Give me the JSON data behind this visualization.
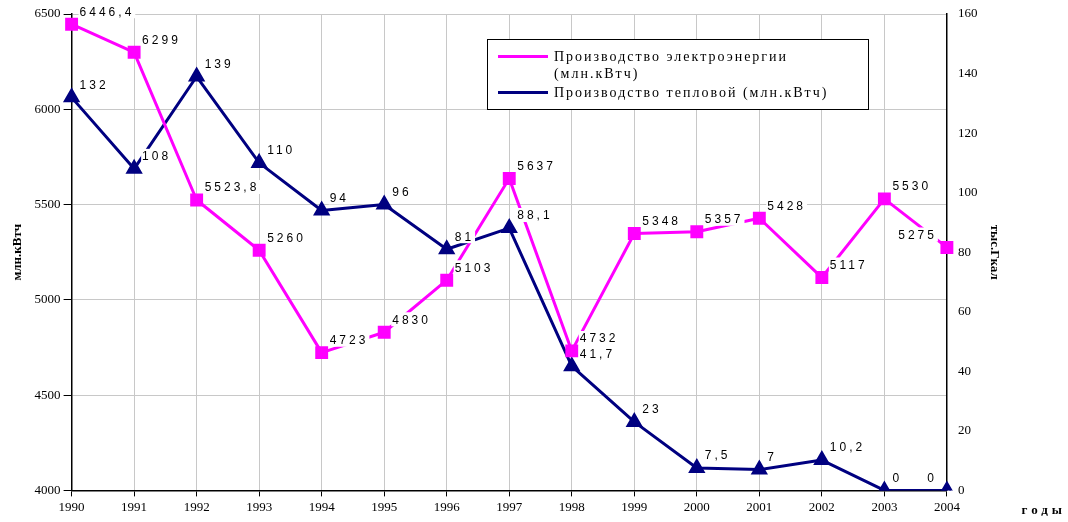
{
  "chart_data": {
    "type": "line",
    "xlabel": "годы",
    "ylabel": "млн.кВтч",
    "y2label": "тыс.Гкал",
    "categories": [
      "1990",
      "1991",
      "1992",
      "1993",
      "1994",
      "1995",
      "1996",
      "1997",
      "1998",
      "1999",
      "2000",
      "2001",
      "2002",
      "2003",
      "2004"
    ],
    "series": [
      {
        "name": "Производство электроэнергии (млн.кВтч)",
        "color": "#ff00ff",
        "marker": "square",
        "values": [
          6446.4,
          6299,
          5523.8,
          5260,
          4723,
          4830,
          5103,
          5637,
          4732,
          5348,
          5357,
          5428,
          5117,
          5530,
          5275
        ],
        "value_labels": [
          "6446,4",
          "6299",
          "5523,8",
          "5260",
          "4723",
          "4830",
          "5103",
          "5637",
          "4732",
          "5348",
          "5357",
          "5428",
          "5117",
          "5530",
          "5275"
        ]
      },
      {
        "name": "Производство тепловой (млн.кВтч)",
        "color": "#000080",
        "marker": "triangle",
        "axis": "y2",
        "values": [
          132,
          108,
          139,
          110,
          94,
          96,
          81,
          88.1,
          41.7,
          23,
          7.5,
          7,
          10.2,
          0,
          0
        ],
        "value_labels": [
          "132",
          "108",
          "139",
          "110",
          "94",
          "96",
          "81",
          "88,1",
          "41,7",
          "23",
          "7,5",
          "7",
          "10,2",
          "0",
          "0"
        ]
      }
    ],
    "ylim": [
      4000,
      6500
    ],
    "yticks": [
      4000,
      4500,
      5000,
      5500,
      6000,
      6500
    ],
    "y2lim": [
      0,
      160
    ],
    "y2ticks": [
      0,
      20,
      40,
      60,
      80,
      100,
      120,
      140,
      160
    ],
    "grid": true,
    "legend": "top right",
    "line_style": "solid"
  }
}
